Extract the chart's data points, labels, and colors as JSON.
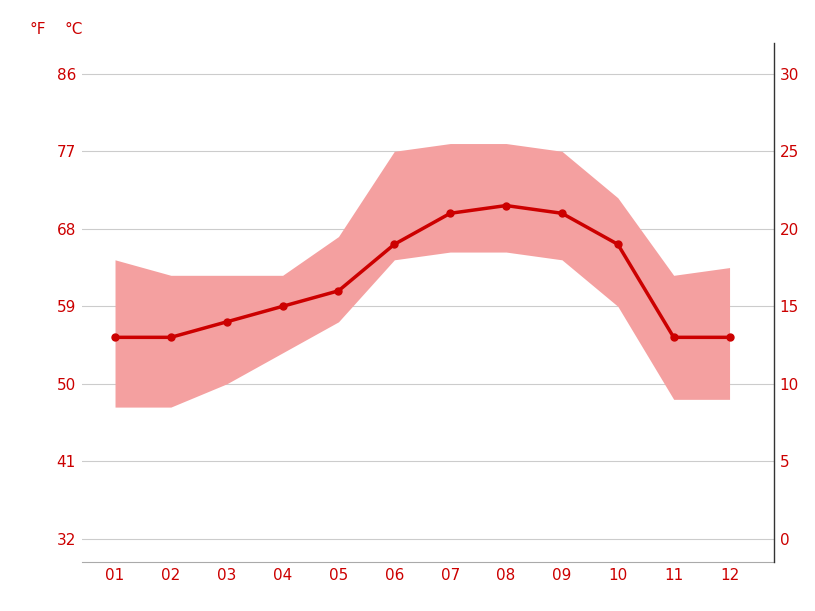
{
  "months": [
    1,
    2,
    3,
    4,
    5,
    6,
    7,
    8,
    9,
    10,
    11,
    12
  ],
  "month_labels": [
    "01",
    "02",
    "03",
    "04",
    "05",
    "06",
    "07",
    "08",
    "09",
    "10",
    "11",
    "12"
  ],
  "avg_temp_c": [
    13,
    13,
    14,
    15,
    16,
    19,
    21,
    21.5,
    21,
    19,
    13,
    13
  ],
  "max_temp_c": [
    18,
    17,
    17,
    17,
    19.5,
    25,
    25.5,
    25.5,
    25,
    22,
    17,
    17.5
  ],
  "min_temp_c": [
    8.5,
    8.5,
    10,
    12,
    14,
    18,
    18.5,
    18.5,
    18,
    15,
    9,
    9
  ],
  "c_ticks": [
    0,
    5,
    10,
    15,
    20,
    25,
    30
  ],
  "c_labels": [
    "0",
    "5",
    "10",
    "15",
    "20",
    "25",
    "30"
  ],
  "f_labels": [
    "32",
    "41",
    "50",
    "59",
    "68",
    "77",
    "86"
  ],
  "ylim_c": [
    -1.5,
    32
  ],
  "xlim": [
    0.4,
    12.8
  ],
  "line_color": "#cc0000",
  "fill_color": "#f4a0a0",
  "tick_color": "#cc0000",
  "grid_color": "#cccccc",
  "background_color": "#ffffff",
  "line_width": 2.5,
  "marker_size": 5,
  "font_size_ticks": 11,
  "font_size_unit_label": 11
}
